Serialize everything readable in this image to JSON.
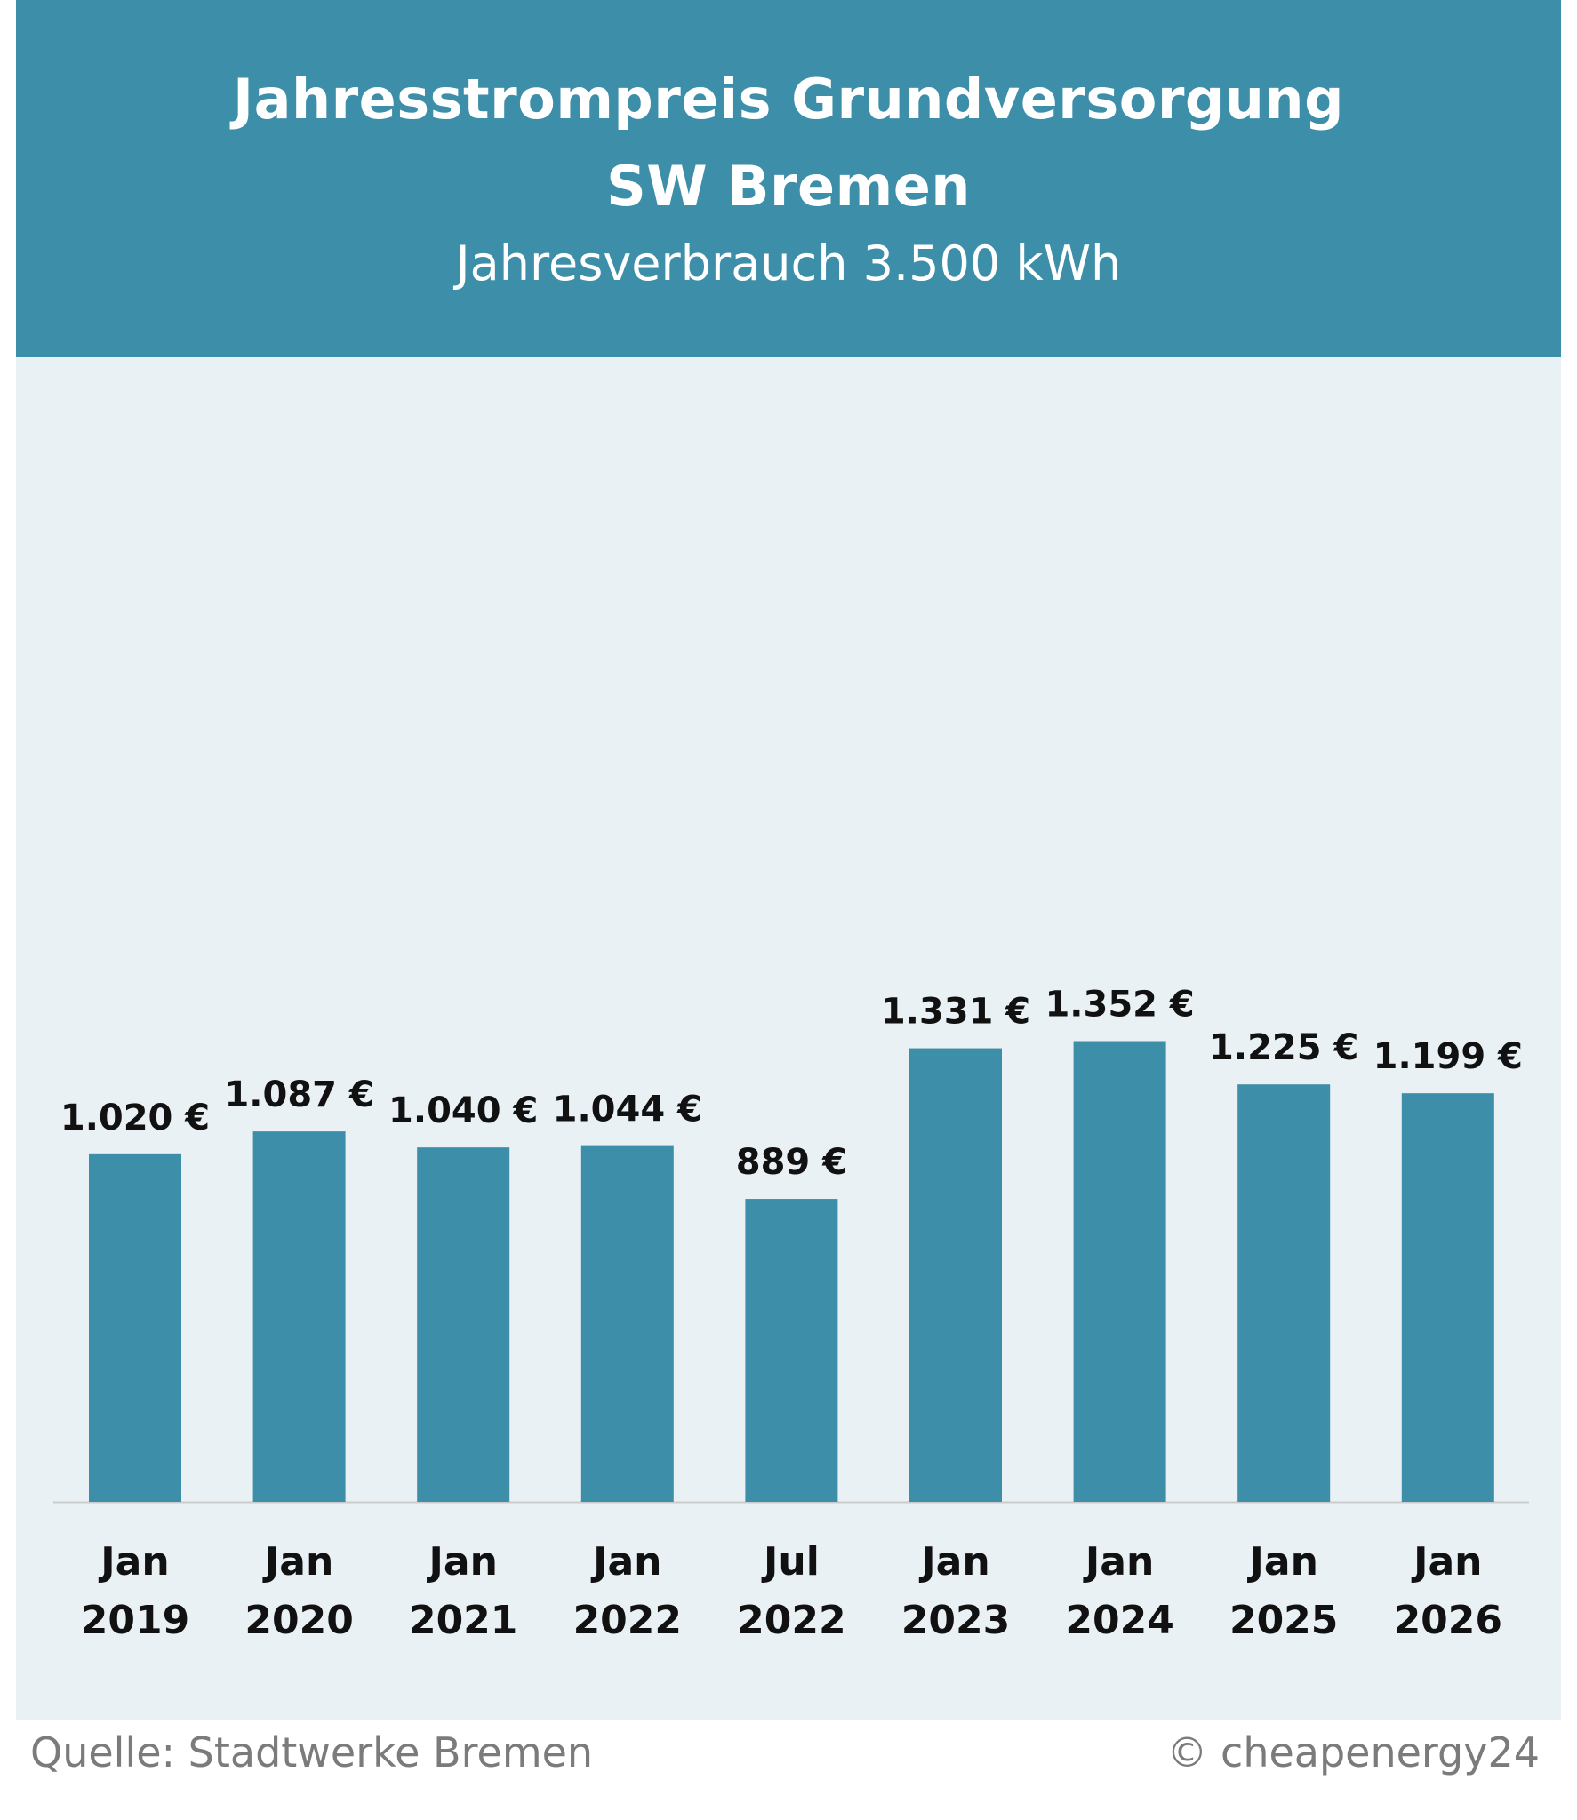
{
  "chart_data": {
    "type": "bar",
    "title": "Jahresstrompreis Grundversorgung",
    "title_line2": "SW Bremen",
    "subtitle": "Jahresverbrauch 3.500 kWh",
    "categories": [
      [
        "Jan",
        "2019"
      ],
      [
        "Jan",
        "2020"
      ],
      [
        "Jan",
        "2021"
      ],
      [
        "Jan",
        "2022"
      ],
      [
        "Jul",
        "2022"
      ],
      [
        "Jan",
        "2023"
      ],
      [
        "Jan",
        "2024"
      ],
      [
        "Jan",
        "2025"
      ],
      [
        "Jan",
        "2026"
      ]
    ],
    "values": [
      1020,
      1087,
      1040,
      1044,
      889,
      1331,
      1352,
      1225,
      1199
    ],
    "data_labels": [
      "1.020 €",
      "1.087 €",
      "1.040 €",
      "1.044 €",
      "889 €",
      "1.331 €",
      "1.352 €",
      "1.225 €",
      "1.199 €"
    ],
    "xlabel": "",
    "ylabel": "",
    "ylim": [
      0,
      2000
    ],
    "grid": false,
    "legend": "none",
    "colors": {
      "bar": "#3d8ea8",
      "header": "#3d8ea8",
      "plot_background": "#e9f1f5",
      "axis_line": "#cccccc",
      "label_text": "#111111",
      "footer_text": "#7b7b7b"
    }
  },
  "footer": {
    "source": "Quelle: Stadtwerke Bremen",
    "copyright": "© cheapenergy24"
  }
}
